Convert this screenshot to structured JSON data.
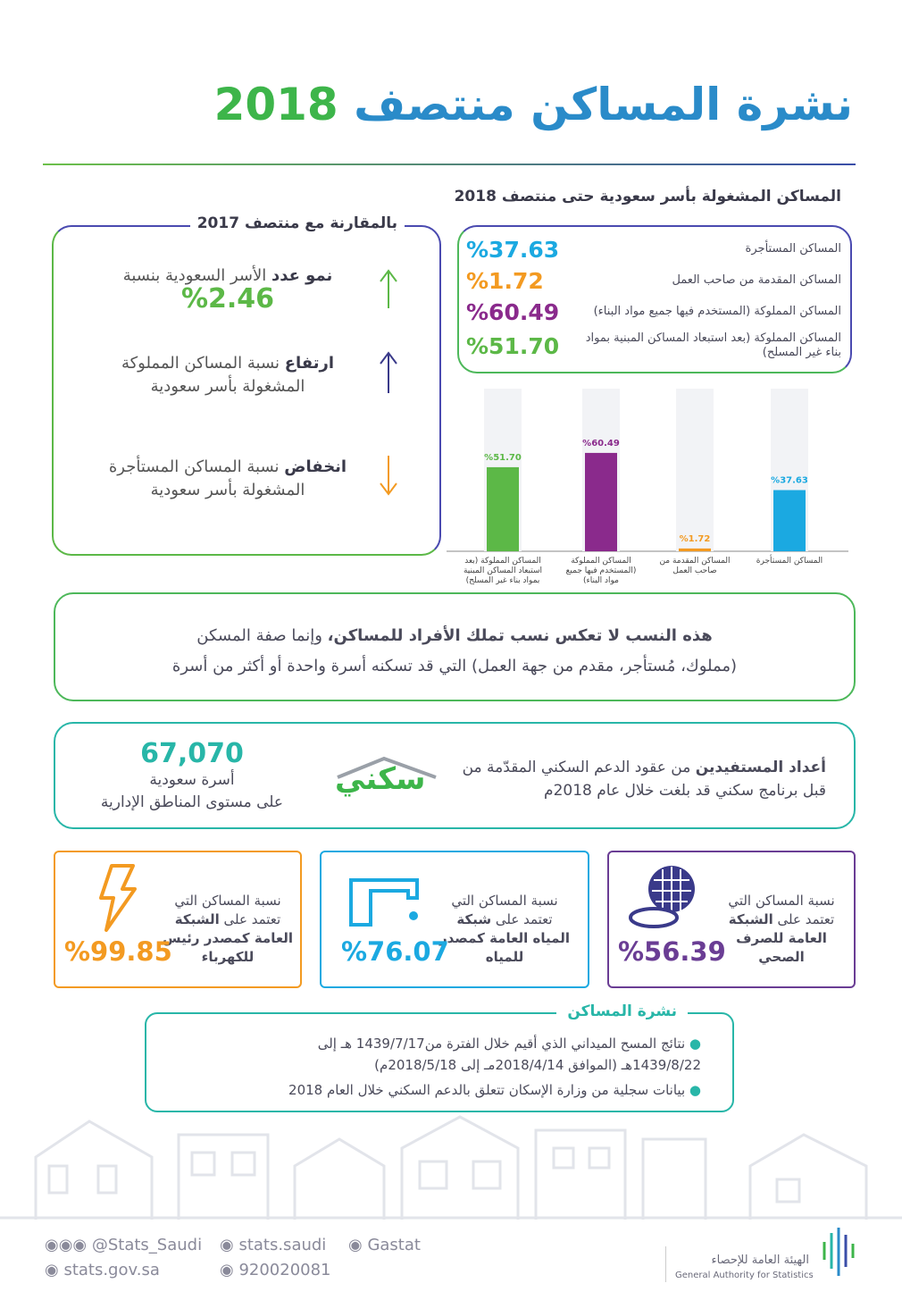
{
  "header": {
    "title_text": "نشرة المساكن منتصف",
    "title_year": "2018"
  },
  "occupied": {
    "title": "المساكن المشغولة بأسر سعودية حتى منتصف 2018",
    "items": [
      {
        "label": "المساكن المستأجرة",
        "value": "%37.63"
      },
      {
        "label": "المساكن المقدمة من صاحب العمل",
        "value": "%1.72"
      },
      {
        "label": "المساكن المملوكة (المستخدم فيها جميع مواد البناء)",
        "value": "%60.49"
      },
      {
        "label": "المساكن المملوكة (بعد استبعاد المساكن المبنية بمواد بناء غير المسلح)",
        "value": "%51.70"
      }
    ]
  },
  "comparison": {
    "title": "بالمقارنة مع منتصف 2017",
    "items": [
      {
        "bold": "نمو عدد",
        "text": "الأسر السعودية بنسبة",
        "value": "%2.46"
      },
      {
        "bold": "ارتفاع",
        "text": "نسبة المساكن المملوكة المشغولة بأسر سعودية"
      },
      {
        "bold": "انخفاض",
        "text": "نسبة المساكن المستأجرة المشغولة بأسر سعودية"
      }
    ]
  },
  "bar_chart": {
    "type": "bar",
    "categories": [
      "المساكن المملوكة (بعد استبعاد المساكن المبنية بمواد بناء غير المسلح)",
      "المساكن المملوكة (المستخدم فيها جميع مواد البناء)",
      "المساكن المقدمة من صاحب العمل",
      "المساكن المستأجرة"
    ],
    "values": [
      51.7,
      60.49,
      1.72,
      37.63
    ],
    "value_labels": [
      "%51.70",
      "%60.49",
      "%1.72",
      "%37.63"
    ],
    "colors": [
      "#5cb847",
      "#8a2a8c",
      "#f39a21",
      "#1ba9e1"
    ],
    "ylim": [
      0,
      100
    ]
  },
  "note": {
    "bold": "هذه النسب لا تعكس نسب تملك الأفراد للمساكن،",
    "text": "وإنما صفة المسكن",
    "line2": "(مملوك، مُستأجر، مقدم من جهة العمل) التي قد تسكنه أسرة واحدة أو أكثر من أسرة"
  },
  "sakani": {
    "bold": "أعداد المستفيدين",
    "text": "من عقود الدعم السكني المقدّمة من",
    "line2": "قبل برنامج سكني قد بلغت خلال عام 2018م",
    "logo": "سكني",
    "value": "67,070",
    "unit": "أسرة سعودية",
    "scope": "على مستوى المناطق الإدارية"
  },
  "utilities": [
    {
      "line1": "نسبة المساكن التي",
      "line2": "تعتمد على",
      "bold": "الشبكة العامة للصرف الصحي",
      "tail": "",
      "value": "%56.39"
    },
    {
      "line1": "نسبة المساكن التي",
      "line2": "تعتمد على",
      "bold": "شبكة المياه العامة كمصدر",
      "tail": "للمياه",
      "value": "%76.07"
    },
    {
      "line1": "نسبة المساكن التي",
      "line2": "تعتمد على",
      "bold": "الشبكة العامة كمصدر رئيس",
      "tail": "للكهرباء",
      "value": "%99.85"
    }
  ],
  "sources": {
    "title": "نشرة المساكن",
    "items": [
      "نتائج المسح الميداني الذي أقيم خلال الفترة من1439/7/17 هـ إلى 1439/8/22هـ (الموافق 2018/4/14مـ إلى 2018/5/18م)",
      "بيانات سجلية من وزارة الإسكان تتعلق بالدعم السكني خلال العام 2018"
    ]
  },
  "footer": {
    "twitter": "@Stats_Saudi",
    "facebook": "stats.saudi",
    "linkedin": "Gastat",
    "website": "stats.gov.sa",
    "phone": "920020081",
    "org_ar": "الهيئة العامة للإحصاء",
    "org_en": "General Authority for Statistics"
  }
}
